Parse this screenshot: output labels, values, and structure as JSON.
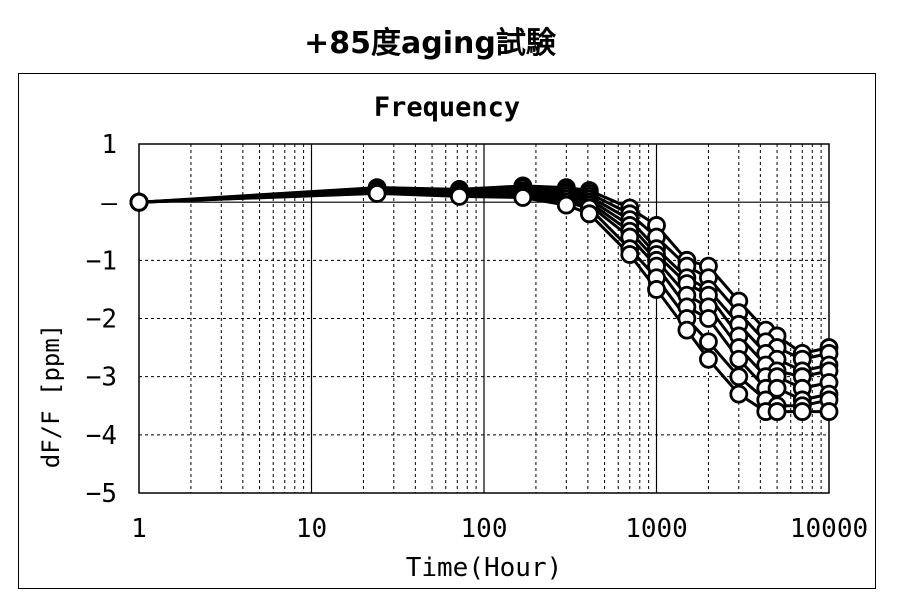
{
  "page": {
    "title": "+85度aging試験"
  },
  "chart_data": {
    "type": "line",
    "title": "Frequency",
    "xlabel": "Time(Hour)",
    "ylabel": "dF/F [ppm]",
    "x_scale": "log",
    "xlim": [
      1,
      10000
    ],
    "ylim": [
      -5,
      1
    ],
    "x_tick_labels": [
      "1",
      "10",
      "100",
      "1000",
      "10000"
    ],
    "y_tick_labels": [
      "1",
      "–",
      "−1",
      "−2",
      "−3",
      "−4",
      "−5"
    ],
    "y_tick_values": [
      1,
      0,
      -1,
      -2,
      -3,
      -4,
      -5
    ],
    "grid": true,
    "marker": "open-circle",
    "line_color": "#000000",
    "x": [
      1,
      24,
      72,
      168,
      300,
      408,
      700,
      1000,
      1500,
      2000,
      3000,
      4300,
      5000,
      7000,
      10000
    ],
    "series": [
      {
        "values": [
          0,
          0.25,
          0.22,
          0.28,
          0.25,
          0.2,
          -0.1,
          -0.4,
          -1.0,
          -1.1,
          -1.7,
          -2.2,
          -2.3,
          -2.6,
          -2.5
        ]
      },
      {
        "values": [
          0,
          0.22,
          0.2,
          0.25,
          0.22,
          0.15,
          -0.2,
          -0.6,
          -1.1,
          -1.3,
          -1.9,
          -2.4,
          -2.5,
          -2.7,
          -2.6
        ]
      },
      {
        "values": [
          0,
          0.2,
          0.18,
          0.2,
          0.18,
          0.1,
          -0.3,
          -0.8,
          -1.3,
          -1.5,
          -2.1,
          -2.6,
          -2.7,
          -2.9,
          -2.8
        ]
      },
      {
        "values": [
          0,
          0.2,
          0.17,
          0.18,
          0.15,
          0.05,
          -0.4,
          -0.9,
          -1.4,
          -1.6,
          -2.3,
          -2.8,
          -2.9,
          -3.0,
          -2.9
        ]
      },
      {
        "values": [
          0,
          0.18,
          0.15,
          0.15,
          0.1,
          0.0,
          -0.5,
          -1.0,
          -1.6,
          -1.8,
          -2.5,
          -3.0,
          -3.0,
          -3.2,
          -3.1
        ]
      },
      {
        "values": [
          0,
          0.17,
          0.13,
          0.12,
          0.05,
          -0.05,
          -0.6,
          -1.1,
          -1.8,
          -2.0,
          -2.7,
          -3.2,
          -3.2,
          -3.4,
          -3.3
        ]
      },
      {
        "values": [
          0,
          0.16,
          0.12,
          0.1,
          0.0,
          -0.1,
          -0.8,
          -1.3,
          -2.0,
          -2.4,
          -3.0,
          -3.4,
          -3.5,
          -3.5,
          -3.4
        ]
      },
      {
        "values": [
          0,
          0.15,
          0.1,
          0.08,
          -0.05,
          -0.2,
          -0.9,
          -1.5,
          -2.2,
          -2.7,
          -3.3,
          -3.6,
          -3.6,
          -3.6,
          -3.6
        ]
      }
    ]
  }
}
